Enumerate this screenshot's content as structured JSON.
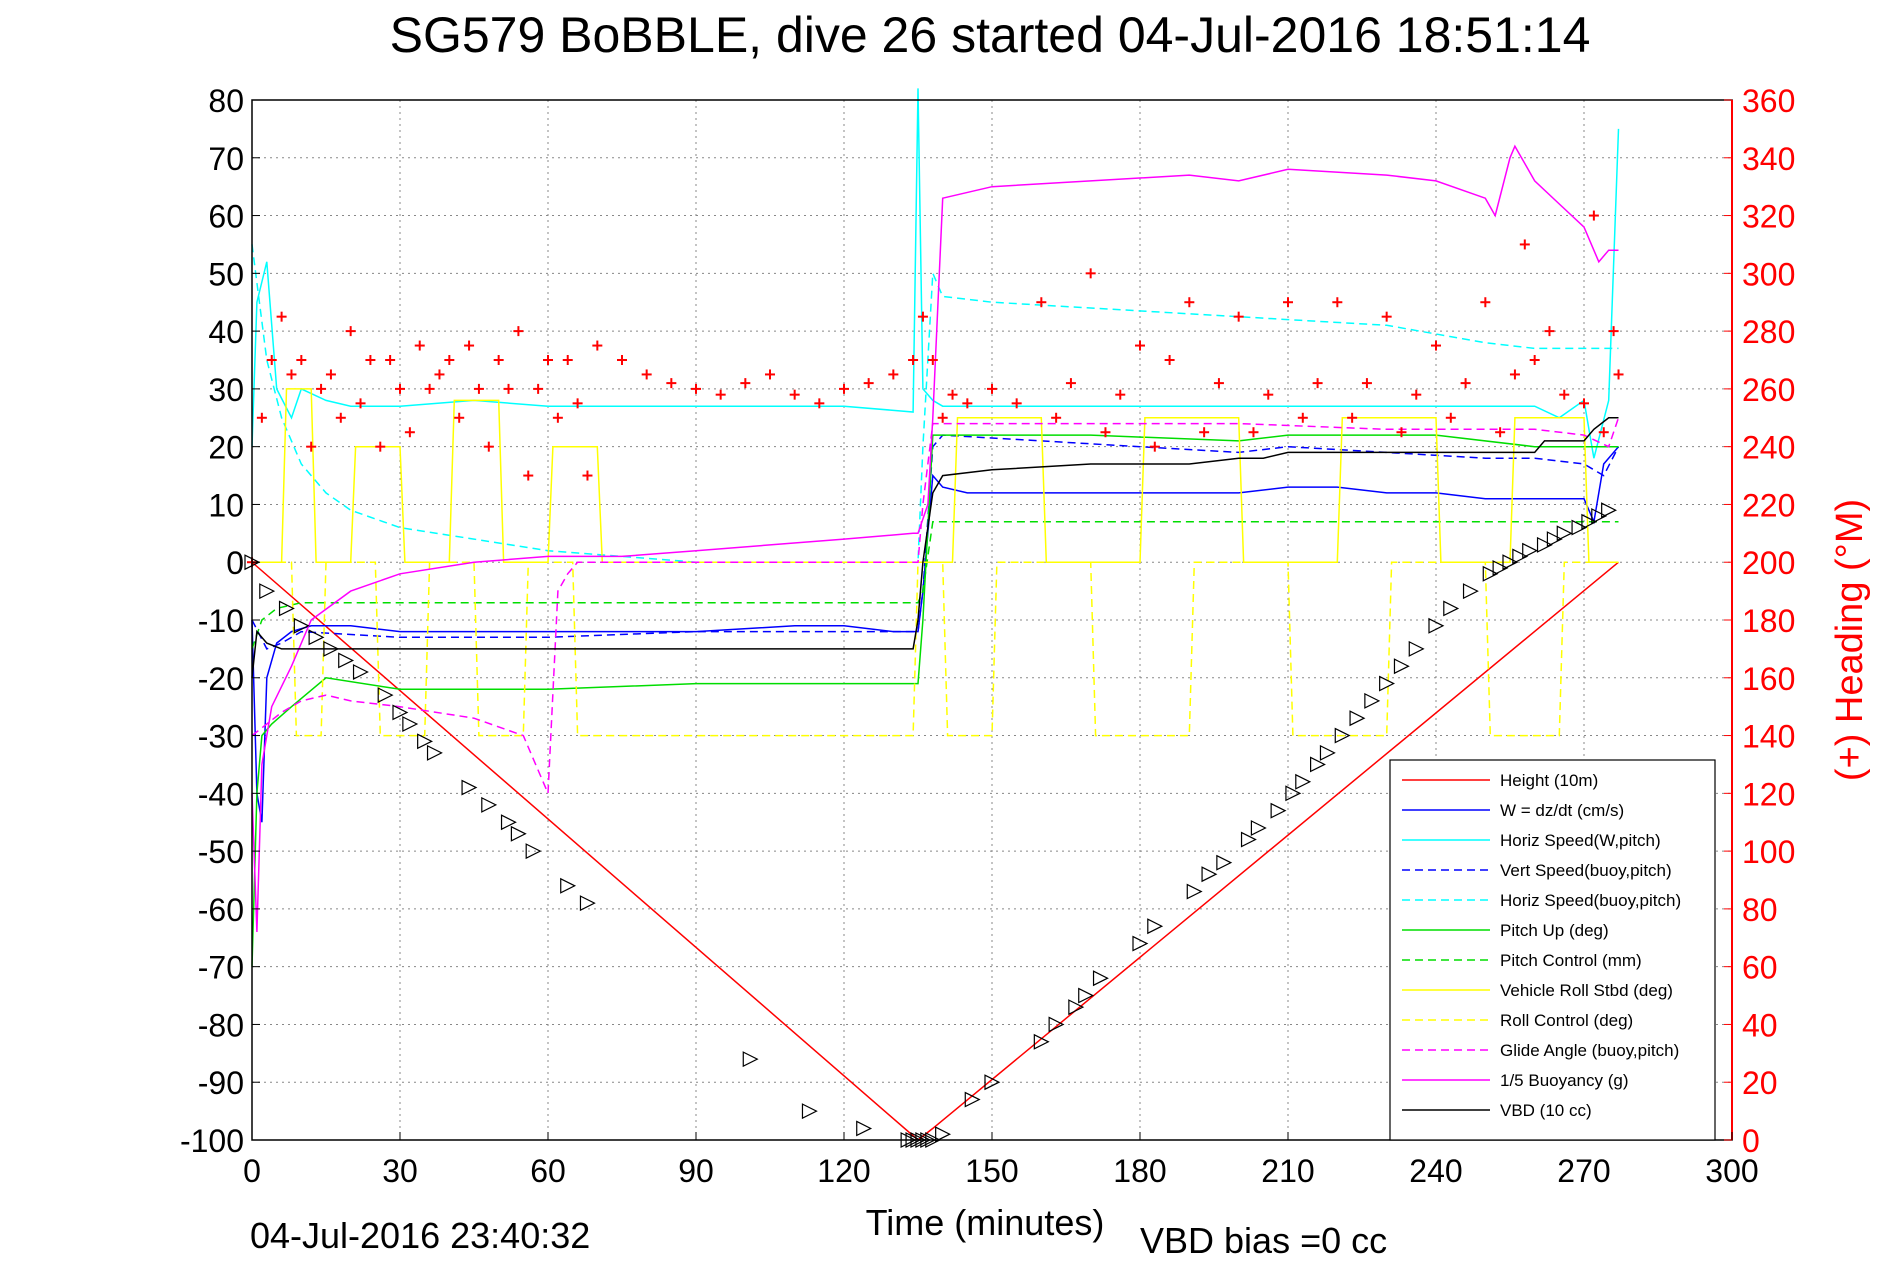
{
  "chart_data": {
    "type": "line",
    "title": "SG579 BoBBLE, dive 26 started 04-Jul-2016 18:51:14",
    "xlabel": "Time (minutes)",
    "ylabel_right": "(+) Heading (°M)",
    "footer_left": "04-Jul-2016 23:40:32",
    "footer_right": "VBD bias =0 cc",
    "xlim": [
      0,
      300
    ],
    "ylim_left": [
      -100,
      80
    ],
    "ylim_right": [
      0,
      360
    ],
    "x_ticks": [
      "0",
      "30",
      "60",
      "90",
      "120",
      "150",
      "180",
      "210",
      "240",
      "270",
      "300"
    ],
    "y_ticks_left": [
      "80",
      "70",
      "60",
      "50",
      "40",
      "30",
      "20",
      "10",
      "0",
      "-10",
      "-20",
      "-30",
      "-40",
      "-50",
      "-60",
      "-70",
      "-80",
      "-90",
      "-100"
    ],
    "y_ticks_right": [
      "360",
      "340",
      "320",
      "300",
      "280",
      "260",
      "240",
      "220",
      "200",
      "180",
      "160",
      "140",
      "120",
      "100",
      "80",
      "60",
      "40",
      "20",
      "0"
    ],
    "grid": true,
    "legend_position": "bottom-right",
    "series": [
      {
        "name": "Height (10m)",
        "color": "#ff0000",
        "style": "solid",
        "x": [
          0,
          135,
          138,
          277
        ],
        "y": [
          0,
          -100,
          -98,
          0
        ]
      },
      {
        "name": "W = dz/dt (cm/s)",
        "color": "#0000ff",
        "style": "solid",
        "x": [
          0,
          1,
          2,
          3,
          5,
          8,
          12,
          20,
          30,
          50,
          70,
          90,
          110,
          120,
          130,
          135,
          136,
          138,
          140,
          145,
          160,
          180,
          190,
          200,
          210,
          220,
          230,
          240,
          250,
          255,
          260,
          265,
          270,
          272,
          274,
          277
        ],
        "y": [
          -10,
          -40,
          -45,
          -20,
          -14,
          -12,
          -11,
          -11,
          -12,
          -12,
          -12,
          -12,
          -11,
          -11,
          -12,
          -12,
          -5,
          15,
          13,
          12,
          12,
          12,
          12,
          12,
          13,
          13,
          12,
          12,
          11,
          11,
          11,
          11,
          11,
          7,
          17,
          20
        ]
      },
      {
        "name": "Horiz Speed(W,pitch)",
        "color": "#00ffff",
        "style": "solid",
        "x": [
          0,
          1,
          3,
          5,
          8,
          10,
          15,
          20,
          30,
          45,
          60,
          75,
          90,
          105,
          120,
          134,
          135,
          136,
          138,
          140,
          150,
          170,
          190,
          210,
          230,
          250,
          260,
          265,
          270,
          272,
          275,
          277
        ],
        "y": [
          20,
          45,
          52,
          30,
          25,
          30,
          28,
          27,
          27,
          28,
          27,
          27,
          27,
          27,
          27,
          26,
          82,
          30,
          28,
          27,
          27,
          27,
          27,
          27,
          27,
          27,
          27,
          25,
          28,
          18,
          28,
          75
        ]
      },
      {
        "name": "Vert Speed(buoy,pitch)",
        "color": "#0000ff",
        "style": "dashed",
        "x": [
          0,
          3,
          6,
          10,
          30,
          60,
          90,
          120,
          135,
          136,
          138,
          140,
          160,
          180,
          200,
          210,
          230,
          250,
          260,
          270,
          274,
          277
        ],
        "y": [
          -10,
          -15,
          -14,
          -12,
          -13,
          -13,
          -12,
          -12,
          -12,
          -5,
          20,
          22,
          21,
          20,
          19,
          20,
          19,
          18,
          18,
          17,
          15,
          20
        ]
      },
      {
        "name": "Horiz Speed(buoy,pitch)",
        "color": "#00ffff",
        "style": "dashed",
        "x": [
          0,
          3,
          6,
          10,
          15,
          20,
          30,
          45,
          60,
          75,
          90,
          120,
          135,
          136,
          138,
          140,
          150,
          170,
          190,
          210,
          230,
          250,
          260,
          270,
          277
        ],
        "y": [
          55,
          35,
          25,
          17,
          12,
          9,
          6,
          4,
          2,
          1,
          0,
          0,
          0,
          20,
          50,
          46,
          45,
          44,
          43,
          42,
          41,
          38,
          37,
          37,
          37
        ]
      },
      {
        "name": "Pitch Up (deg)",
        "color": "#00dd00",
        "style": "solid",
        "x": [
          0,
          1,
          2,
          4,
          8,
          15,
          30,
          60,
          90,
          120,
          135,
          136,
          138,
          140,
          170,
          200,
          210,
          240,
          260,
          270,
          277
        ],
        "y": [
          -70,
          -40,
          -30,
          -28,
          -25,
          -20,
          -22,
          -22,
          -21,
          -21,
          -21,
          -10,
          22,
          22,
          22,
          21,
          22,
          22,
          20,
          20,
          20
        ]
      },
      {
        "name": "Pitch Control (mm)",
        "color": "#00dd00",
        "style": "dashed",
        "x": [
          0,
          2,
          5,
          10,
          15,
          30,
          60,
          90,
          120,
          135,
          136,
          138,
          140,
          160,
          180,
          200,
          210,
          240,
          260,
          270,
          277
        ],
        "y": [
          -15,
          -10,
          -8,
          -7,
          -7,
          -7,
          -7,
          -7,
          -7,
          -7,
          -5,
          7,
          7,
          7,
          7,
          7,
          7,
          7,
          7,
          7,
          7
        ]
      },
      {
        "name": "Vehicle Roll Stbd (deg)",
        "color": "#ffff00",
        "style": "solid",
        "x": [
          0,
          6,
          7,
          12,
          13,
          20,
          21,
          30,
          31,
          40,
          41,
          50,
          51,
          60,
          61,
          70,
          71,
          134,
          135,
          138,
          142,
          143,
          160,
          161,
          180,
          181,
          200,
          201,
          220,
          221,
          240,
          241,
          255,
          256,
          270,
          271,
          277
        ],
        "y": [
          0,
          0,
          30,
          30,
          0,
          0,
          20,
          20,
          0,
          0,
          28,
          28,
          0,
          0,
          20,
          20,
          0,
          0,
          0,
          0,
          0,
          25,
          25,
          0,
          0,
          25,
          25,
          0,
          0,
          25,
          25,
          0,
          0,
          25,
          25,
          0,
          0
        ]
      },
      {
        "name": "Roll Control (deg)",
        "color": "#ffff00",
        "style": "dashed",
        "x": [
          0,
          8,
          9,
          14,
          15,
          25,
          26,
          35,
          36,
          45,
          46,
          55,
          56,
          65,
          66,
          134,
          135,
          140,
          141,
          150,
          151,
          170,
          171,
          190,
          191,
          210,
          211,
          230,
          231,
          250,
          251,
          265,
          266,
          277
        ],
        "y": [
          0,
          0,
          -30,
          -30,
          0,
          0,
          -30,
          -30,
          0,
          0,
          -30,
          -30,
          0,
          0,
          -30,
          -30,
          0,
          0,
          -30,
          -30,
          0,
          0,
          -30,
          -30,
          0,
          0,
          -30,
          -30,
          0,
          0,
          -30,
          -30,
          0,
          0
        ]
      },
      {
        "name": "Glide Angle (buoy,pitch)",
        "color": "#ff00ff",
        "style": "dashed",
        "x": [
          0,
          3,
          6,
          10,
          15,
          20,
          30,
          45,
          55,
          60,
          62,
          64,
          66,
          90,
          120,
          135,
          136,
          138,
          140,
          170,
          200,
          230,
          260,
          270,
          275,
          277
        ],
        "y": [
          -30,
          -28,
          -26,
          -24,
          -23,
          -24,
          -25,
          -27,
          -30,
          -40,
          -5,
          -2,
          0,
          0,
          0,
          0,
          10,
          24,
          24,
          24,
          24,
          23,
          23,
          22,
          20,
          25
        ]
      },
      {
        "name": "1/5 Buoyancy (g)",
        "color": "#ff00ff",
        "style": "solid",
        "x": [
          0,
          1,
          2,
          4,
          8,
          12,
          20,
          30,
          45,
          60,
          75,
          90,
          105,
          120,
          134,
          135,
          137,
          138,
          140,
          150,
          170,
          190,
          200,
          210,
          230,
          240,
          250,
          252,
          255,
          256,
          260,
          265,
          270,
          273,
          275,
          277
        ],
        "y": [
          -40,
          -64,
          -35,
          -25,
          -18,
          -10,
          -5,
          -2,
          0,
          1,
          1,
          2,
          3,
          4,
          5,
          5,
          10,
          25,
          63,
          65,
          66,
          67,
          66,
          68,
          67,
          66,
          63,
          60,
          70,
          72,
          66,
          62,
          58,
          52,
          54,
          54
        ]
      },
      {
        "name": "VBD (10 cc)",
        "color": "#000000",
        "style": "solid",
        "x": [
          0,
          1,
          3,
          6,
          10,
          20,
          40,
          60,
          100,
          134,
          135,
          136,
          138,
          140,
          150,
          170,
          190,
          200,
          205,
          210,
          240,
          260,
          262,
          270,
          272,
          275,
          277
        ],
        "y": [
          -20,
          -12,
          -14,
          -15,
          -15,
          -15,
          -15,
          -15,
          -15,
          -15,
          -10,
          0,
          12,
          15,
          16,
          17,
          17,
          18,
          18,
          19,
          19,
          19,
          21,
          21,
          23,
          25,
          25
        ]
      }
    ],
    "heading_series": {
      "name": "(+) Heading",
      "color": "#ff0000",
      "marker": "+",
      "x": [
        0,
        2,
        4,
        6,
        8,
        10,
        12,
        14,
        16,
        18,
        20,
        22,
        24,
        26,
        28,
        30,
        32,
        34,
        36,
        38,
        40,
        42,
        44,
        46,
        48,
        50,
        52,
        54,
        56,
        58,
        60,
        62,
        64,
        66,
        68,
        70,
        75,
        80,
        85,
        90,
        95,
        100,
        105,
        110,
        115,
        120,
        125,
        130,
        134,
        136,
        138,
        140,
        142,
        145,
        150,
        155,
        160,
        163,
        166,
        170,
        173,
        176,
        180,
        183,
        186,
        190,
        193,
        196,
        200,
        203,
        206,
        210,
        213,
        216,
        220,
        223,
        226,
        230,
        233,
        236,
        240,
        243,
        246,
        250,
        253,
        256,
        258,
        260,
        263,
        266,
        270,
        272,
        274,
        276,
        277
      ],
      "y": [
        200,
        250,
        270,
        285,
        265,
        270,
        240,
        260,
        265,
        250,
        280,
        255,
        270,
        240,
        270,
        260,
        245,
        275,
        260,
        265,
        270,
        250,
        275,
        260,
        240,
        270,
        260,
        280,
        230,
        260,
        270,
        250,
        270,
        255,
        230,
        275,
        270,
        265,
        262,
        260,
        258,
        262,
        265,
        258,
        255,
        260,
        262,
        265,
        270,
        285,
        270,
        250,
        258,
        255,
        260,
        255,
        290,
        250,
        262,
        300,
        245,
        258,
        275,
        240,
        270,
        290,
        245,
        262,
        285,
        245,
        258,
        290,
        250,
        262,
        290,
        250,
        262,
        285,
        245,
        258,
        275,
        250,
        262,
        290,
        245,
        265,
        310,
        270,
        280,
        258,
        255,
        320,
        245,
        280,
        265
      ]
    },
    "depth_markers": {
      "name": "Height markers",
      "marker": "triangle",
      "x": [
        0,
        3,
        7,
        10,
        13,
        16,
        19,
        22,
        27,
        30,
        32,
        35,
        37,
        44,
        48,
        52,
        54,
        57,
        64,
        68,
        101,
        113,
        124,
        133,
        134,
        135,
        136,
        137,
        138,
        140,
        146,
        150,
        160,
        163,
        167,
        169,
        172,
        180,
        183,
        191,
        194,
        197,
        202,
        204,
        208,
        211,
        213,
        216,
        218,
        221,
        224,
        227,
        230,
        233,
        236,
        240,
        243,
        247,
        251,
        253,
        255,
        257,
        259,
        262,
        264,
        266,
        269,
        271,
        273,
        275
      ],
      "y": [
        0,
        -5,
        -8,
        -11,
        -13,
        -15,
        -17,
        -19,
        -23,
        -26,
        -28,
        -31,
        -33,
        -39,
        -42,
        -45,
        -47,
        -50,
        -56,
        -59,
        -86,
        -95,
        -98,
        -100,
        -100,
        -100,
        -100,
        -100,
        -100,
        -99,
        -93,
        -90,
        -83,
        -80,
        -77,
        -75,
        -72,
        -66,
        -63,
        -57,
        -54,
        -52,
        -48,
        -46,
        -43,
        -40,
        -38,
        -35,
        -33,
        -30,
        -27,
        -24,
        -21,
        -18,
        -15,
        -11,
        -8,
        -5,
        -2,
        -1,
        0,
        1,
        2,
        3,
        4,
        5,
        6,
        7,
        8,
        9
      ]
    }
  }
}
